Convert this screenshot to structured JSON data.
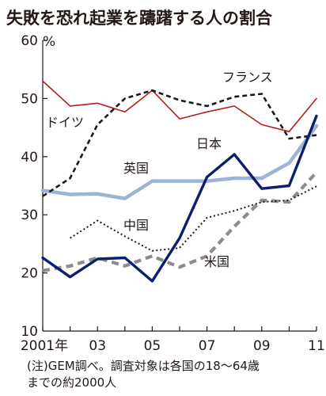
{
  "chart_data": {
    "type": "line",
    "title": "失敗を恐れ起業を躊躇する人の割合",
    "y_unit": "%",
    "ylim": [
      10,
      60
    ],
    "y_ticks": [
      "10",
      "20",
      "30",
      "40",
      "50",
      "60"
    ],
    "x_ticks": [
      "2001年",
      "03",
      "05",
      "07",
      "09",
      "11"
    ],
    "x": [
      2001,
      2002,
      2003,
      2004,
      2005,
      2006,
      2007,
      2008,
      2009,
      2010,
      2011
    ],
    "series": [
      {
        "name": "フランス",
        "color": "#b0201c",
        "style": "solid-thin",
        "values": [
          53.0,
          48.7,
          49.2,
          47.7,
          51.4,
          46.5,
          47.7,
          48.7,
          45.5,
          44.3,
          50.0
        ]
      },
      {
        "name": "ドイツ",
        "color": "#1a1a1a",
        "style": "dashed",
        "values": [
          33.2,
          36.3,
          45.5,
          50.0,
          51.4,
          49.7,
          48.7,
          50.3,
          50.8,
          43.1,
          43.7
        ]
      },
      {
        "name": "英国",
        "color": "#9db3d8",
        "style": "solid-thick",
        "values": [
          34.2,
          33.5,
          33.6,
          32.8,
          35.8,
          35.8,
          35.8,
          36.3,
          36.3,
          38.9,
          45.3
        ]
      },
      {
        "name": "日本",
        "color": "#0c1f6b",
        "style": "solid",
        "values": [
          22.6,
          19.3,
          22.4,
          22.6,
          18.6,
          26.0,
          36.5,
          40.4,
          34.5,
          35.0,
          47.0
        ]
      },
      {
        "name": "中国",
        "color": "#1a1a1a",
        "style": "dotted",
        "values": [
          null,
          26.0,
          29.0,
          26.3,
          23.8,
          24.3,
          29.5,
          30.7,
          32.2,
          32.5,
          34.9
        ]
      },
      {
        "name": "米国",
        "color": "#8c8c8c",
        "style": "dashed-thick",
        "values": [
          20.4,
          21.2,
          22.6,
          21.2,
          22.9,
          21.0,
          22.9,
          28.0,
          32.5,
          32.2,
          37.3
        ]
      }
    ]
  },
  "note_lines": [
    "(注)GEM調べ。調査対象は各国の18～64歳",
    "までの約2000人"
  ]
}
